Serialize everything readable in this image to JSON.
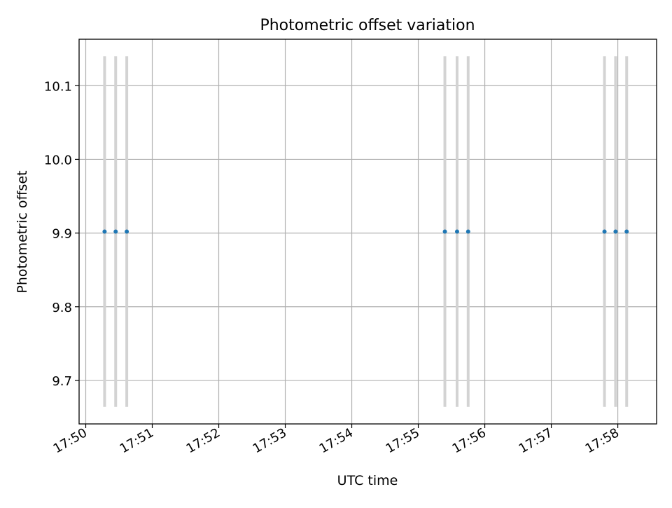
{
  "chart_data": {
    "type": "scatter",
    "title": "Photometric offset variation",
    "xlabel": "UTC time",
    "ylabel": "Photometric offset",
    "xlim": [
      "17:49:54",
      "17:58:35"
    ],
    "ylim": [
      9.641,
      10.163
    ],
    "grid": true,
    "x_tick_labels": [
      "17:50",
      "17:51",
      "17:52",
      "17:53",
      "17:54",
      "17:55",
      "17:56",
      "17:57",
      "17:58"
    ],
    "y_tick_labels": [
      "9.7",
      "9.8",
      "9.9",
      "10.0",
      "10.1"
    ],
    "series": [
      {
        "marker_color": "#1f77b4",
        "errorbar_color": "#d3d3d3",
        "x": [
          "17:50:17",
          "17:50:27",
          "17:50:37",
          "17:55:24",
          "17:55:35",
          "17:55:45",
          "17:57:48",
          "17:57:58",
          "17:58:08"
        ],
        "y": [
          9.902,
          9.902,
          9.902,
          9.902,
          9.902,
          9.902,
          9.902,
          9.902,
          9.902
        ],
        "yerr": [
          0.238,
          0.238,
          0.238,
          0.238,
          0.238,
          0.238,
          0.238,
          0.238,
          0.238
        ]
      }
    ]
  }
}
